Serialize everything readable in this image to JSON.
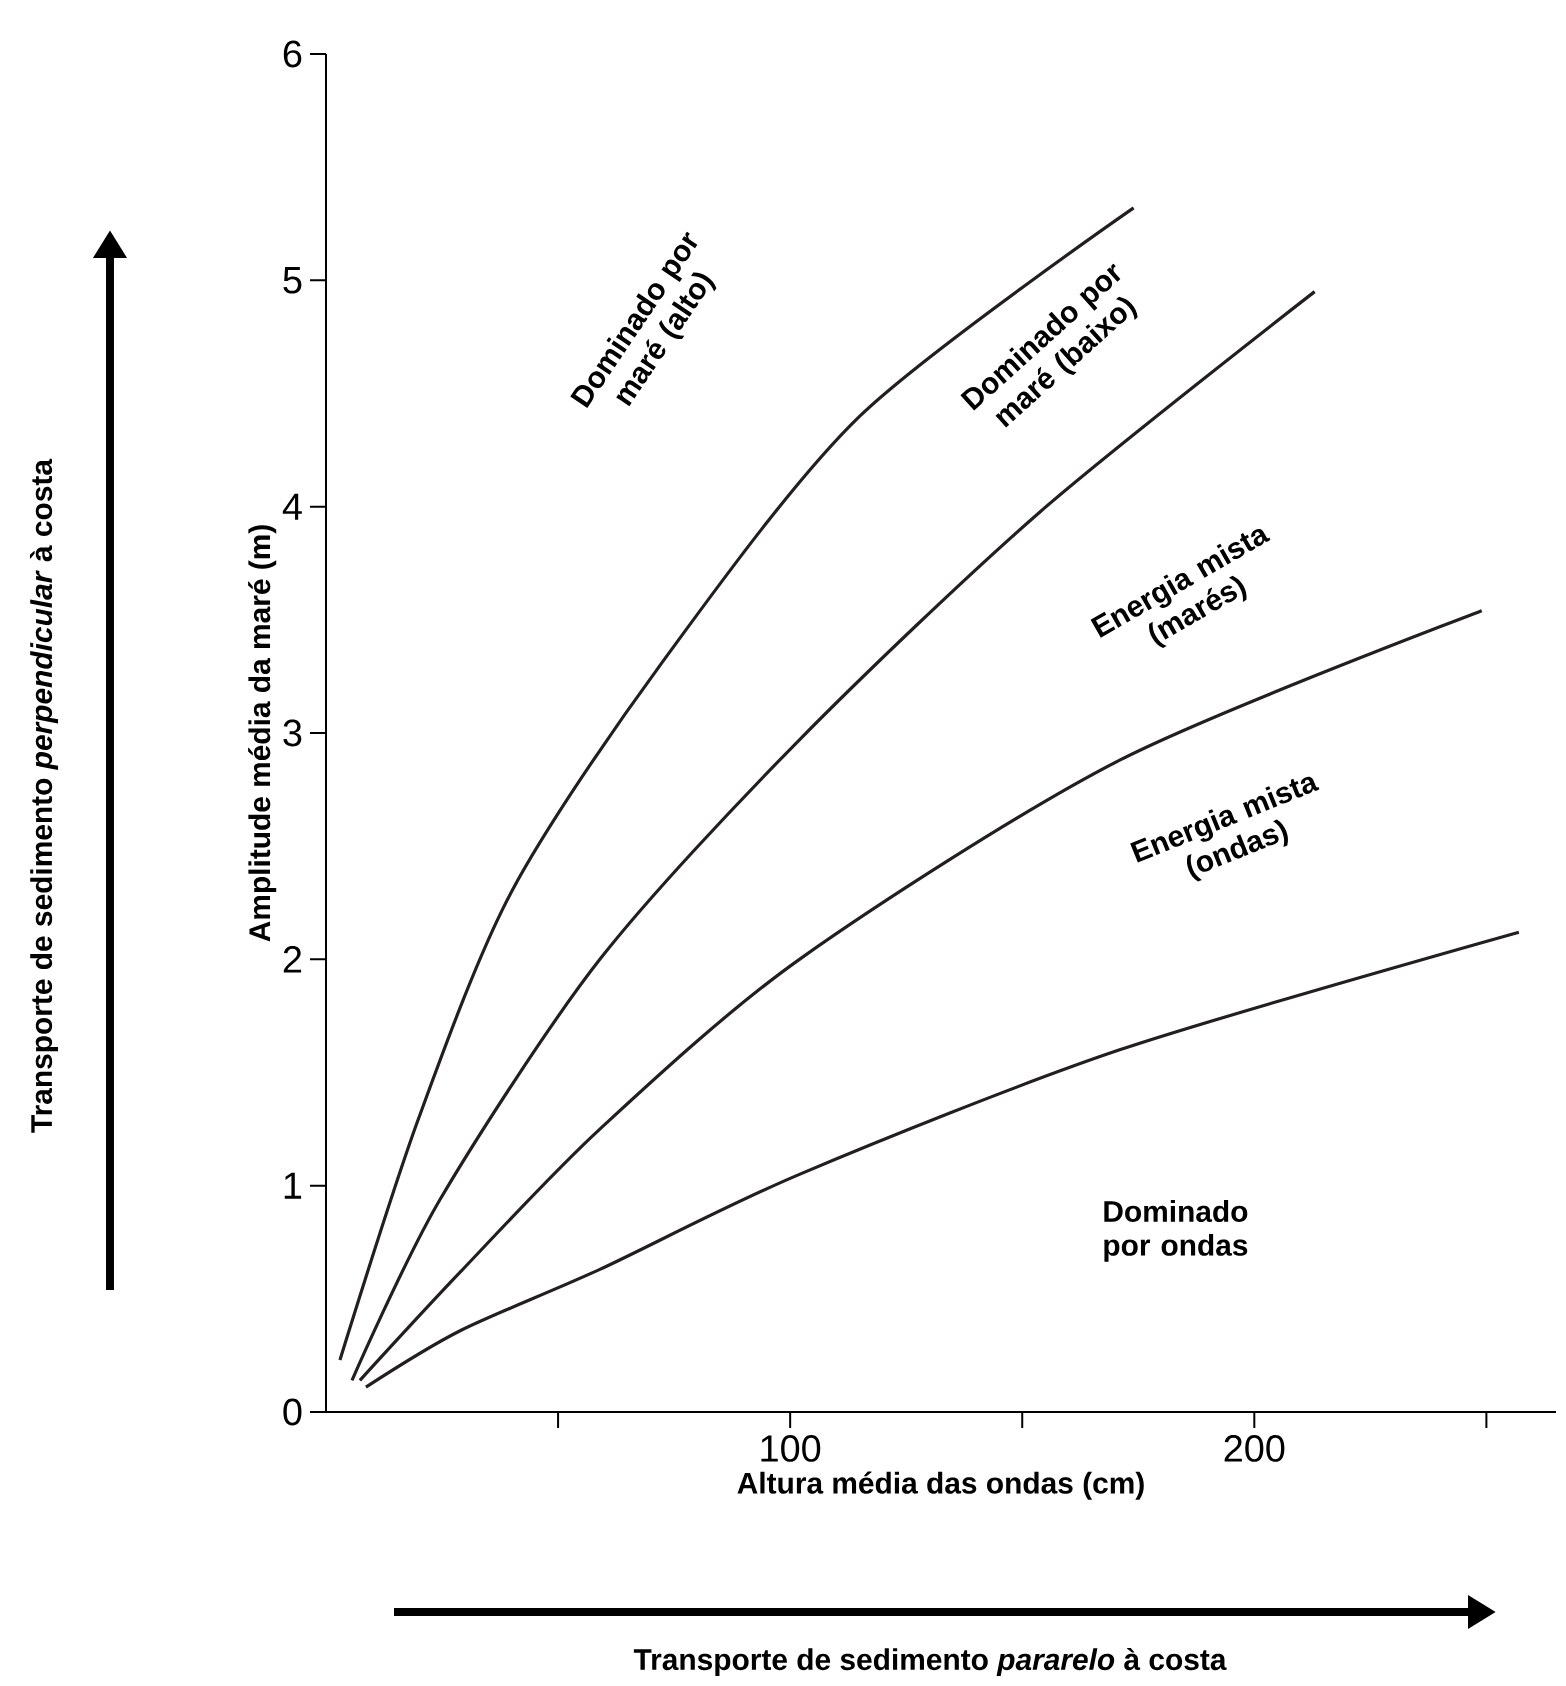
{
  "chart_data": {
    "type": "line",
    "xlabel": "Altura média das ondas (cm)",
    "ylabel": "Amplitude média da maré (m)",
    "xlim": [
      0,
      265
    ],
    "ylim": [
      0,
      6
    ],
    "xticks": [
      {
        "value": 50,
        "label": null
      },
      100,
      {
        "value": 150,
        "label": null
      },
      200,
      {
        "value": 250,
        "label": null
      }
    ],
    "yticks": [
      0,
      1,
      2,
      3,
      4,
      5,
      6
    ],
    "series": [
      {
        "color": "#231f20",
        "x": [
          3,
          20,
          40,
          72,
          115,
          174
        ],
        "values": [
          0.23,
          1.3,
          2.3,
          3.3,
          4.4,
          5.32
        ]
      },
      {
        "color": "#231f20",
        "x": [
          5.6,
          24.6,
          59,
          102,
          154,
          213
        ],
        "values": [
          0.14,
          0.94,
          2.0,
          2.97,
          3.98,
          4.95
        ]
      },
      {
        "color": "#231f20",
        "x": [
          7.3,
          29,
          59,
          102,
          171,
          249
        ],
        "values": [
          0.14,
          0.62,
          1.25,
          2.0,
          2.88,
          3.54
        ]
      },
      {
        "color": "#231f20",
        "x": [
          8.6,
          29,
          59,
          102,
          171,
          257
        ],
        "values": [
          0.11,
          0.36,
          0.63,
          1.05,
          1.6,
          2.12
        ]
      }
    ],
    "annotations": [
      "Dominado por maré (alto)",
      "Dominado por maré (baixo)",
      "Energia mista (marés)",
      "Energia mista (ondas)",
      "Dominado por ondas",
      "Transporte de sedimento *perpendicular* à costa",
      "Transporte de sedimento *pararelo* à costa"
    ]
  }
}
